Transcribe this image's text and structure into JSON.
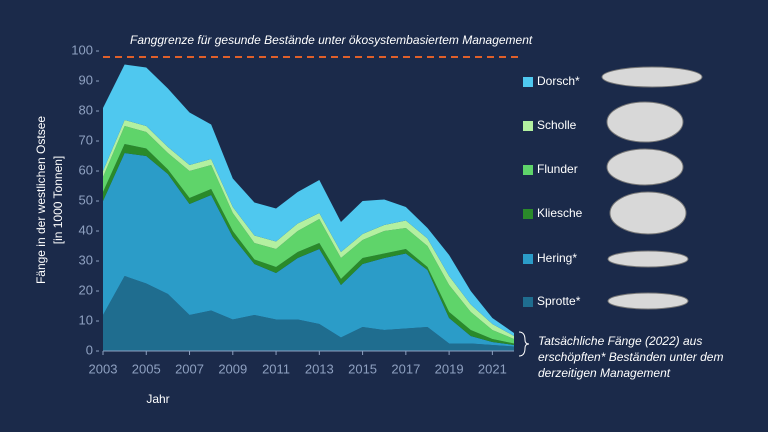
{
  "chart_data": {
    "type": "stacked_area",
    "reference_line": {
      "value": 98,
      "label": "Fanggrenze für gesunde Bestände unter ökosystembasiertem Management",
      "color": "#e0602a"
    },
    "y_label": [
      "Fänge in der westlichen Ostsee",
      "[in 1000 Tonnen]"
    ],
    "x_label": "Jahr",
    "x": [
      2003,
      2004,
      2005,
      2006,
      2007,
      2008,
      2009,
      2010,
      2011,
      2012,
      2013,
      2014,
      2015,
      2016,
      2017,
      2018,
      2019,
      2020,
      2021,
      2022
    ],
    "xlim": [
      2003,
      2022
    ],
    "xticks": [
      2003,
      2005,
      2007,
      2009,
      2011,
      2013,
      2015,
      2017,
      2019,
      2021
    ],
    "ylim": [
      0,
      100
    ],
    "yticks": [
      0,
      10,
      20,
      30,
      40,
      50,
      60,
      70,
      80,
      90,
      100
    ],
    "series": [
      {
        "name": "Sprotte*",
        "color": "#1f6d8f",
        "values": [
          12,
          25,
          22.5,
          19,
          12,
          13.5,
          10.5,
          12,
          10.5,
          10.5,
          9,
          4.5,
          8,
          7,
          7.5,
          8,
          2.5,
          2.5,
          2,
          1.5
        ]
      },
      {
        "name": "Hering*",
        "color": "#2b9cc8",
        "values": [
          38,
          41,
          42.5,
          40,
          37,
          38.5,
          27.5,
          17,
          15.5,
          20.5,
          25,
          17.5,
          21,
          24,
          25,
          19,
          8.5,
          2.5,
          1,
          0.5
        ]
      },
      {
        "name": "Kliesche",
        "color": "#2a8a2a",
        "values": [
          3,
          3,
          2.5,
          1.5,
          2,
          2,
          2,
          1.5,
          2,
          2,
          2,
          2,
          2,
          1.5,
          1.5,
          1,
          2,
          2,
          1,
          0.5
        ]
      },
      {
        "name": "Flunder",
        "color": "#5fd46a",
        "values": [
          5,
          6,
          5.5,
          5.5,
          9,
          8,
          6,
          5.5,
          6,
          7,
          8,
          7,
          6,
          7.5,
          7,
          7,
          9,
          6,
          3,
          1.5
        ]
      },
      {
        "name": "Scholle",
        "color": "#b3f0a0",
        "values": [
          2,
          2,
          2,
          2,
          2,
          2,
          2,
          2.5,
          2.5,
          2.5,
          2,
          2,
          2,
          2,
          2.5,
          2.5,
          3,
          2.5,
          2,
          1
        ]
      },
      {
        "name": "Dorsch*",
        "color": "#4fc8ef",
        "values": [
          21,
          18.5,
          19.5,
          19.5,
          17.5,
          11.5,
          9.5,
          11,
          11,
          10.5,
          11,
          10,
          11,
          8.5,
          4.5,
          3.5,
          7,
          4.5,
          2,
          1
        ]
      }
    ],
    "annotation": [
      "Tatsächliche Fänge (2022) aus",
      "erschöpften* Beständen unter dem",
      "derzeitigen Management"
    ]
  }
}
